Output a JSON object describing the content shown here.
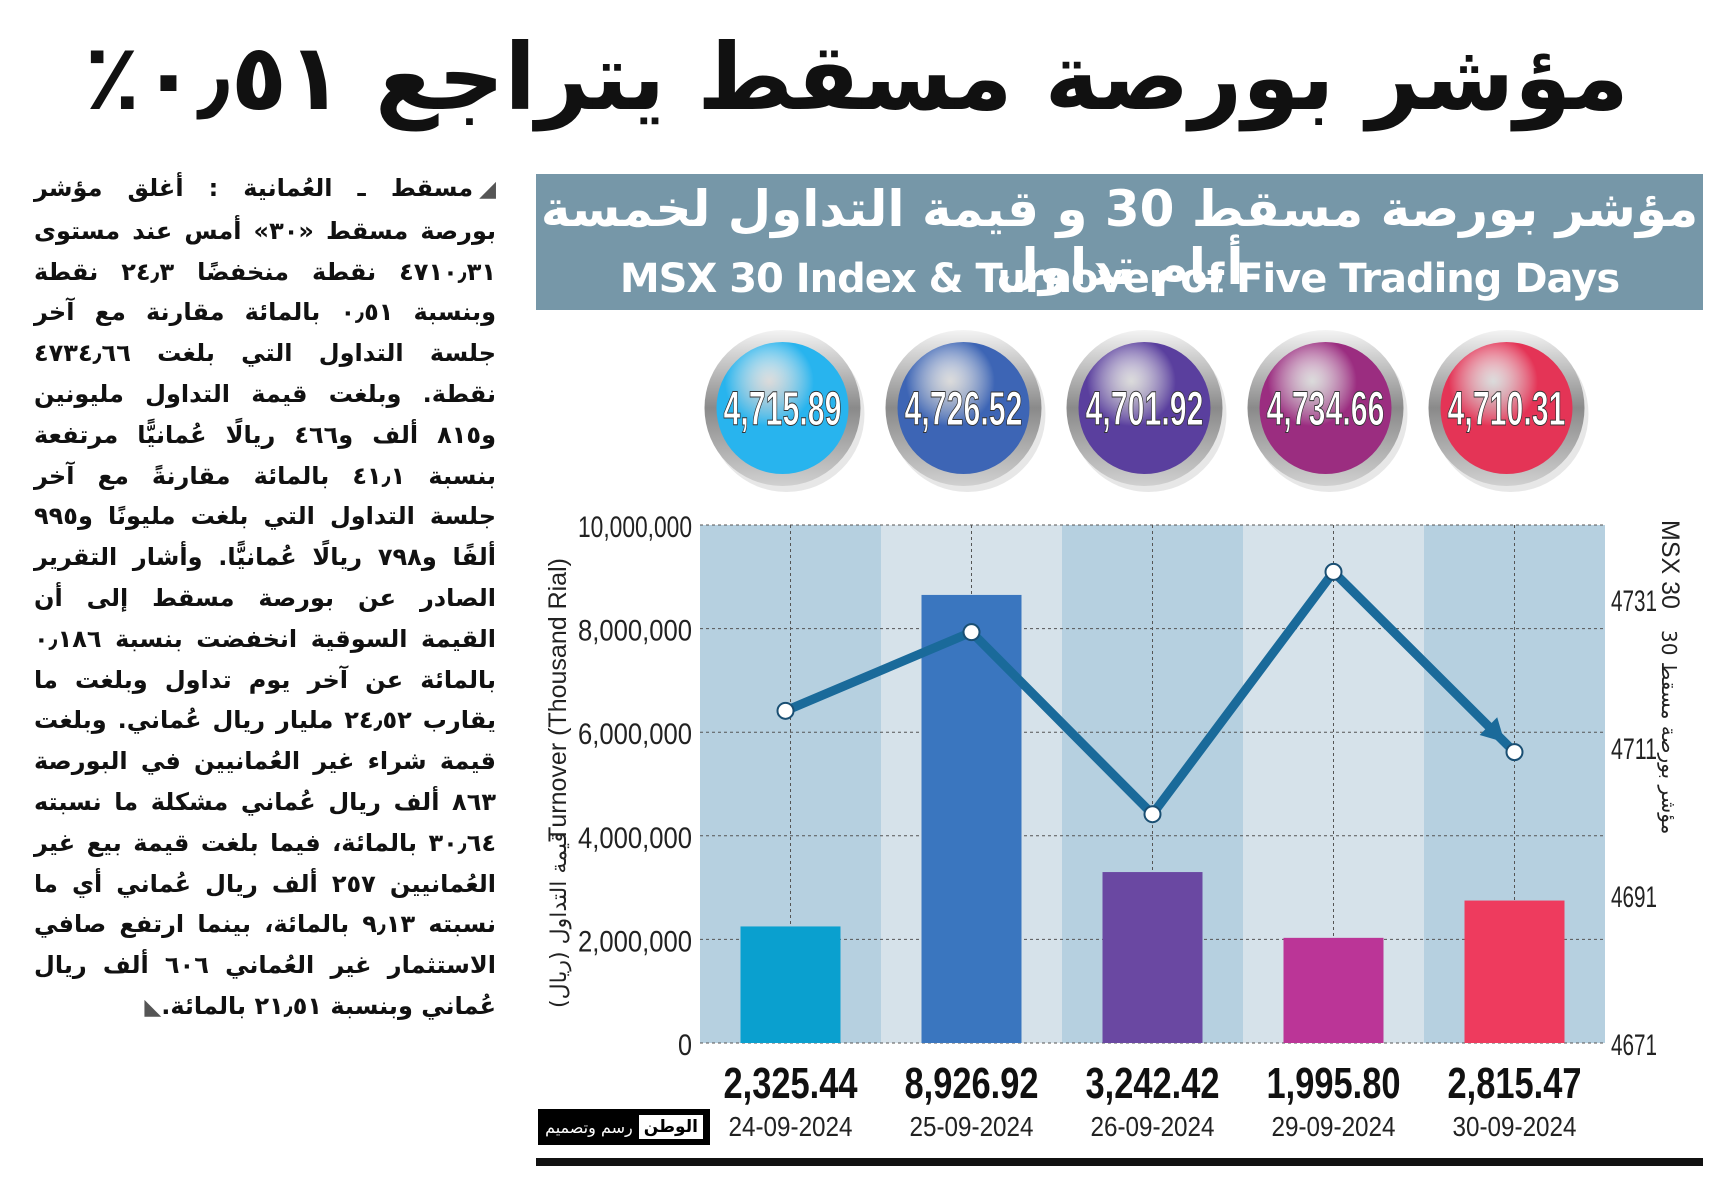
{
  "headline": "مؤشر بورصة مسقط يتراجع ٠٫٥١٪",
  "article": {
    "text": "مسقط ـ العُمانية : أغلق مؤشر بورصة مسقط «٣٠» أمس عند مستوى ٤٧١٠٫٣١ نقطة منخفضًا ٢٤٫٣ نقطة وبنسبة ٠٫٥١ بالمائة مقارنة مع آخر جلسة التداول التي بلغت ٤٧٣٤٫٦٦ نقطة. وبلغت قيمة التداول مليونين و٨١٥ ألف و٤٦٦ ريالًا عُمانيًّا مرتفعة بنسبة ٤١٫١ بالمائة مقارنةً مع آخر جلسة التداول التي بلغت مليونًا و٩٩٥ ألفًا و٧٩٨ ريالًا عُمانيًّا. وأشار التقرير الصادر عن بورصة مسقط إلى أن القيمة السوقية انخفضت بنسبة ٠٫١٨٦ بالمائة عن آخر يوم تداول وبلغت ما يقارب ٢٤٫٥٢ مليار ريال عُماني. وبلغت قيمة شراء غير العُمانيين في البورصة ٨٦٣ ألف ريال عُماني مشكلة ما نسبته ٣٠٫٦٤ بالمائة، فيما بلغت قيمة بيع غير العُمانيين ٢٥٧ ألف ريال عُماني أي ما نسبته ٩٫١٣ بالمائة، بينما ارتفع صافي الاستثمار غير العُماني ٦٠٦ ألف ريال عُماني وبنسبة ٢١٫٥١ بالمائة."
  },
  "banner": {
    "title_ar": "مؤشر بورصة مسقط 30 و قيمة التداول لخمسة أيام تداول",
    "title_en": "MSX 30 Index & Turnover of Five Trading Days"
  },
  "logo": {
    "brand": "الوطن",
    "credit": "رسم وتصميم"
  },
  "chart_data": {
    "type": "bar",
    "title": "MSX 30 Index & Turnover of Five Trading Days",
    "categories": [
      "24-09-2024",
      "25-09-2024",
      "26-09-2024",
      "29-09-2024",
      "30-09-2024"
    ],
    "series": [
      {
        "name": "Turnover (Thousand Rial)",
        "type": "bar",
        "values": [
          2325.44,
          8926.92,
          3242.42,
          1995.8,
          2815.47
        ],
        "labels": [
          "2,325.44",
          "8,926.92",
          "3,242.42",
          "1,995.80",
          "2,815.47"
        ],
        "bar_heights_on_axis": [
          2250000,
          8650000,
          3300000,
          2030000,
          2750000
        ]
      },
      {
        "name": "MSX 30",
        "type": "line",
        "values": [
          4715.89,
          4726.52,
          4701.92,
          4734.66,
          4710.31
        ],
        "labels": [
          "4,715.89",
          "4,726.52",
          "4,701.92",
          "4,734.66",
          "4,710.31"
        ]
      }
    ],
    "bar_colors": [
      "#0aa0cf",
      "#3a76bf",
      "#6a48a2",
      "#bb3597",
      "#ee3b5e"
    ],
    "bubble_colors": [
      "#28b4ee",
      "#3d65b5",
      "#5a3f9e",
      "#9b2d80",
      "#e43456"
    ],
    "line_color": "#1a6a9a",
    "ylabel_en": "Turnover (Thousand Rial)",
    "ylabel_ar": "قيمة التداول (ريال)",
    "y2label_en": "MSX 30",
    "y2label_ar": "مؤشر بورصة مسقط 30",
    "ylim": [
      0,
      10000000
    ],
    "y_ticks": [
      "0",
      "2,000,000",
      "4,000,000",
      "6,000,000",
      "8,000,000",
      "10,000,000"
    ],
    "y2lim": [
      4671,
      4741
    ],
    "y2_ticks": [
      "4671",
      "4691",
      "4711",
      "4731"
    ],
    "grid": true,
    "column_shading": [
      "#b6d0e0",
      "#d6e2ea"
    ]
  }
}
